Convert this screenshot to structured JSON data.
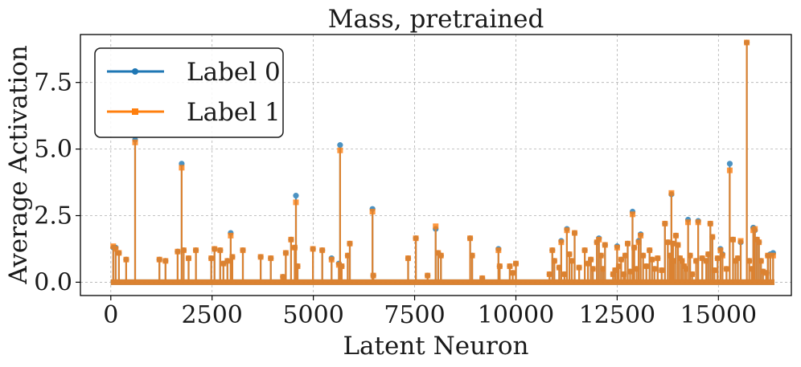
{
  "chart_data": {
    "type": "line",
    "title": "Mass, pretrained",
    "xlabel": "Latent Neuron",
    "ylabel": "Average Activation",
    "xlim": [
      -750,
      16800
    ],
    "ylim": [
      -0.5,
      9.3
    ],
    "xticks": [
      0,
      2500,
      5000,
      7500,
      10000,
      12500,
      15000
    ],
    "xtick_labels": [
      "0",
      "2500",
      "5000",
      "7500",
      "10000",
      "12500",
      "15000"
    ],
    "yticks": [
      0.0,
      2.5,
      5.0,
      7.5
    ],
    "ytick_labels": [
      "0.0",
      "2.5",
      "5.0",
      "7.5"
    ],
    "grid": true,
    "legend_position": "top-left",
    "x_range": [
      0,
      16383
    ],
    "baseline": 0.0,
    "series": [
      {
        "name": "Label 0",
        "color": "#1f77b4",
        "marker": "circle",
        "points": [
          [
            60,
            1.3
          ],
          [
            120,
            1.3
          ],
          [
            200,
            1.1
          ],
          [
            380,
            0.85
          ],
          [
            600,
            5.35
          ],
          [
            1200,
            0.85
          ],
          [
            1350,
            0.8
          ],
          [
            1650,
            1.15
          ],
          [
            1750,
            4.45
          ],
          [
            1800,
            1.2
          ],
          [
            1920,
            0.9
          ],
          [
            2100,
            1.2
          ],
          [
            2480,
            0.9
          ],
          [
            2560,
            1.25
          ],
          [
            2700,
            1.2
          ],
          [
            2780,
            0.7
          ],
          [
            2880,
            0.8
          ],
          [
            2960,
            1.85
          ],
          [
            3000,
            0.95
          ],
          [
            3260,
            1.2
          ],
          [
            3700,
            0.95
          ],
          [
            3950,
            0.9
          ],
          [
            4250,
            0.2
          ],
          [
            4320,
            1.1
          ],
          [
            4450,
            1.6
          ],
          [
            4540,
            1.3
          ],
          [
            4570,
            3.25
          ],
          [
            4610,
            0.6
          ],
          [
            4990,
            1.25
          ],
          [
            5220,
            1.2
          ],
          [
            5450,
            0.9
          ],
          [
            5630,
            0.7
          ],
          [
            5660,
            5.15
          ],
          [
            5700,
            0.6
          ],
          [
            5850,
            1.0
          ],
          [
            5900,
            1.45
          ],
          [
            6460,
            2.75
          ],
          [
            6480,
            0.25
          ],
          [
            7340,
            0.9
          ],
          [
            7530,
            1.65
          ],
          [
            7820,
            0.25
          ],
          [
            8020,
            2.0
          ],
          [
            8080,
            1.1
          ],
          [
            8150,
            1.0
          ],
          [
            8870,
            1.65
          ],
          [
            8920,
            1.0
          ],
          [
            9170,
            0.15
          ],
          [
            9570,
            1.25
          ],
          [
            9600,
            0.6
          ],
          [
            9850,
            0.6
          ],
          [
            9920,
            0.35
          ],
          [
            10000,
            0.7
          ],
          [
            10830,
            0.3
          ],
          [
            10900,
            1.2
          ],
          [
            10950,
            0.8
          ],
          [
            11070,
            0.55
          ],
          [
            11120,
            1.55
          ],
          [
            11200,
            0.3
          ],
          [
            11260,
            2.0
          ],
          [
            11320,
            1.05
          ],
          [
            11380,
            0.8
          ],
          [
            11450,
            1.85
          ],
          [
            11560,
            0.55
          ],
          [
            11700,
            1.2
          ],
          [
            11780,
            0.7
          ],
          [
            11850,
            0.85
          ],
          [
            11900,
            0.5
          ],
          [
            12000,
            1.5
          ],
          [
            12050,
            1.65
          ],
          [
            12100,
            1.0
          ],
          [
            12150,
            0.5
          ],
          [
            12200,
            1.4
          ],
          [
            12400,
            0.3
          ],
          [
            12450,
            0.45
          ],
          [
            12500,
            1.35
          ],
          [
            12540,
            0.6
          ],
          [
            12600,
            0.85
          ],
          [
            12660,
            0.3
          ],
          [
            12700,
            1.0
          ],
          [
            12760,
            1.45
          ],
          [
            12820,
            0.4
          ],
          [
            12880,
            2.65
          ],
          [
            12920,
            1.3
          ],
          [
            12980,
            0.5
          ],
          [
            13030,
            1.55
          ],
          [
            13080,
            1.8
          ],
          [
            13140,
            1.0
          ],
          [
            13220,
            0.6
          ],
          [
            13300,
            1.2
          ],
          [
            13360,
            0.85
          ],
          [
            13420,
            0.5
          ],
          [
            13500,
            0.9
          ],
          [
            13600,
            0.45
          ],
          [
            13680,
            2.2
          ],
          [
            13750,
            1.5
          ],
          [
            13800,
            1.0
          ],
          [
            13840,
            3.3
          ],
          [
            13880,
            1.45
          ],
          [
            13900,
            0.8
          ],
          [
            13950,
            1.75
          ],
          [
            14000,
            1.4
          ],
          [
            14050,
            0.9
          ],
          [
            14100,
            0.8
          ],
          [
            14150,
            0.6
          ],
          [
            14200,
            0.5
          ],
          [
            14250,
            2.35
          ],
          [
            14300,
            1.0
          ],
          [
            14350,
            0.3
          ],
          [
            14450,
            0.8
          ],
          [
            14500,
            2.3
          ],
          [
            14600,
            0.9
          ],
          [
            14700,
            0.8
          ],
          [
            14750,
            1.05
          ],
          [
            14800,
            2.2
          ],
          [
            14850,
            1.7
          ],
          [
            14900,
            0.45
          ],
          [
            14980,
            0.9
          ],
          [
            15050,
            1.25
          ],
          [
            15100,
            1.05
          ],
          [
            15200,
            0.5
          ],
          [
            15280,
            4.45
          ],
          [
            15360,
            1.6
          ],
          [
            15420,
            0.8
          ],
          [
            15480,
            0.9
          ],
          [
            15550,
            1.5
          ],
          [
            15700,
            9.0
          ],
          [
            15760,
            0.8
          ],
          [
            15820,
            0.5
          ],
          [
            15860,
            2.05
          ],
          [
            15900,
            1.95
          ],
          [
            15950,
            1.6
          ],
          [
            16000,
            1.5
          ],
          [
            16050,
            0.8
          ],
          [
            16100,
            0.4
          ],
          [
            16180,
            0.35
          ],
          [
            16220,
            1.0
          ],
          [
            16280,
            1.05
          ],
          [
            16350,
            1.1
          ]
        ]
      },
      {
        "name": "Label 1",
        "color": "#ff7f0e",
        "marker": "square",
        "points": [
          [
            60,
            1.35
          ],
          [
            120,
            1.25
          ],
          [
            200,
            1.1
          ],
          [
            380,
            0.85
          ],
          [
            600,
            5.25
          ],
          [
            1200,
            0.85
          ],
          [
            1350,
            0.8
          ],
          [
            1650,
            1.15
          ],
          [
            1750,
            4.3
          ],
          [
            1800,
            1.2
          ],
          [
            1920,
            0.9
          ],
          [
            2100,
            1.2
          ],
          [
            2480,
            0.9
          ],
          [
            2560,
            1.25
          ],
          [
            2700,
            1.2
          ],
          [
            2780,
            0.7
          ],
          [
            2880,
            0.8
          ],
          [
            2960,
            1.75
          ],
          [
            3000,
            0.95
          ],
          [
            3260,
            1.2
          ],
          [
            3700,
            0.95
          ],
          [
            3950,
            0.9
          ],
          [
            4250,
            0.2
          ],
          [
            4320,
            1.1
          ],
          [
            4450,
            1.6
          ],
          [
            4540,
            1.3
          ],
          [
            4570,
            3.0
          ],
          [
            4610,
            0.6
          ],
          [
            4990,
            1.25
          ],
          [
            5220,
            1.2
          ],
          [
            5450,
            0.85
          ],
          [
            5630,
            0.65
          ],
          [
            5660,
            4.95
          ],
          [
            5700,
            0.6
          ],
          [
            5850,
            1.0
          ],
          [
            5900,
            1.45
          ],
          [
            6460,
            2.65
          ],
          [
            6480,
            0.25
          ],
          [
            7340,
            0.9
          ],
          [
            7530,
            1.65
          ],
          [
            7820,
            0.25
          ],
          [
            8020,
            2.1
          ],
          [
            8080,
            1.1
          ],
          [
            8150,
            1.0
          ],
          [
            8870,
            1.65
          ],
          [
            8920,
            1.0
          ],
          [
            9170,
            0.15
          ],
          [
            9570,
            1.2
          ],
          [
            9600,
            0.6
          ],
          [
            9850,
            0.6
          ],
          [
            9920,
            0.35
          ],
          [
            10000,
            0.7
          ],
          [
            10830,
            0.3
          ],
          [
            10900,
            1.2
          ],
          [
            10950,
            0.8
          ],
          [
            11070,
            0.55
          ],
          [
            11120,
            1.5
          ],
          [
            11200,
            0.3
          ],
          [
            11260,
            1.95
          ],
          [
            11320,
            1.05
          ],
          [
            11380,
            0.8
          ],
          [
            11450,
            1.85
          ],
          [
            11560,
            0.55
          ],
          [
            11700,
            1.2
          ],
          [
            11780,
            0.7
          ],
          [
            11850,
            0.85
          ],
          [
            11900,
            0.5
          ],
          [
            12000,
            1.5
          ],
          [
            12050,
            1.6
          ],
          [
            12100,
            1.0
          ],
          [
            12150,
            0.5
          ],
          [
            12200,
            1.4
          ],
          [
            12400,
            0.3
          ],
          [
            12450,
            0.45
          ],
          [
            12500,
            1.3
          ],
          [
            12540,
            0.6
          ],
          [
            12600,
            0.85
          ],
          [
            12660,
            0.3
          ],
          [
            12700,
            1.0
          ],
          [
            12760,
            1.45
          ],
          [
            12820,
            0.4
          ],
          [
            12880,
            2.55
          ],
          [
            12920,
            1.3
          ],
          [
            12980,
            0.5
          ],
          [
            13030,
            1.5
          ],
          [
            13080,
            1.75
          ],
          [
            13140,
            1.0
          ],
          [
            13220,
            0.6
          ],
          [
            13300,
            1.2
          ],
          [
            13360,
            0.85
          ],
          [
            13420,
            0.5
          ],
          [
            13500,
            0.9
          ],
          [
            13600,
            0.45
          ],
          [
            13680,
            2.2
          ],
          [
            13750,
            1.5
          ],
          [
            13800,
            1.0
          ],
          [
            13840,
            3.35
          ],
          [
            13880,
            1.45
          ],
          [
            13900,
            0.8
          ],
          [
            13950,
            1.75
          ],
          [
            14000,
            1.4
          ],
          [
            14050,
            0.9
          ],
          [
            14100,
            0.8
          ],
          [
            14150,
            0.6
          ],
          [
            14200,
            0.5
          ],
          [
            14250,
            2.25
          ],
          [
            14300,
            1.0
          ],
          [
            14350,
            0.3
          ],
          [
            14450,
            0.8
          ],
          [
            14500,
            2.25
          ],
          [
            14600,
            0.9
          ],
          [
            14700,
            0.8
          ],
          [
            14750,
            1.05
          ],
          [
            14800,
            2.2
          ],
          [
            14850,
            1.7
          ],
          [
            14900,
            0.45
          ],
          [
            14980,
            0.9
          ],
          [
            15050,
            1.2
          ],
          [
            15100,
            1.0
          ],
          [
            15200,
            0.5
          ],
          [
            15280,
            4.2
          ],
          [
            15360,
            1.6
          ],
          [
            15420,
            0.8
          ],
          [
            15480,
            0.9
          ],
          [
            15550,
            1.55
          ],
          [
            15700,
            9.0
          ],
          [
            15760,
            0.8
          ],
          [
            15820,
            0.5
          ],
          [
            15860,
            1.95
          ],
          [
            15900,
            2.0
          ],
          [
            15950,
            1.6
          ],
          [
            16000,
            1.5
          ],
          [
            16050,
            0.8
          ],
          [
            16100,
            0.4
          ],
          [
            16180,
            0.35
          ],
          [
            16220,
            1.0
          ],
          [
            16280,
            1.0
          ],
          [
            16350,
            1.0
          ]
        ]
      }
    ]
  }
}
